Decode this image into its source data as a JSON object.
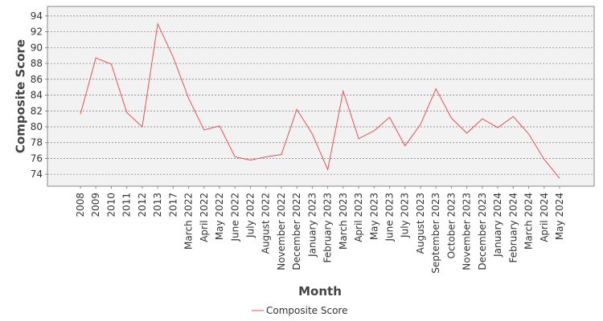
{
  "chart_data": {
    "type": "line",
    "x_label": "Month",
    "y_label": "Composite Score",
    "categories": [
      "2008",
      "2009",
      "2010",
      "2011",
      "2012",
      "2013",
      "2017",
      "March 2022",
      "April 2022",
      "May 2022",
      "June 2022",
      "July 2022",
      "August 2022",
      "November 2022",
      "December 2022",
      "January 2023",
      "February 2023",
      "March 2023",
      "April 2023",
      "May 2023",
      "June 2023",
      "July 2023",
      "August 2023",
      "September 2023",
      "October 2023",
      "November 2023",
      "December 2023",
      "January 2024",
      "February 2024",
      "March 2024",
      "April 2024",
      "May 2024"
    ],
    "series": [
      {
        "name": "Composite Score",
        "color": "#f05050",
        "values": [
          81.6,
          88.7,
          87.9,
          81.8,
          80.0,
          93.0,
          88.8,
          83.6,
          79.6,
          80.1,
          76.2,
          75.8,
          76.2,
          76.5,
          82.2,
          79.1,
          74.6,
          84.5,
          78.5,
          79.5,
          81.2,
          77.6,
          80.3,
          84.8,
          81.1,
          79.2,
          81.0,
          79.9,
          81.3,
          79.1,
          75.9,
          73.5
        ]
      }
    ],
    "ylim": [
      72.5,
      95.2
    ],
    "yticks": [
      74,
      76,
      78,
      80,
      82,
      84,
      86,
      88,
      90,
      92,
      94
    ],
    "grid": true,
    "legend": "bottom"
  }
}
